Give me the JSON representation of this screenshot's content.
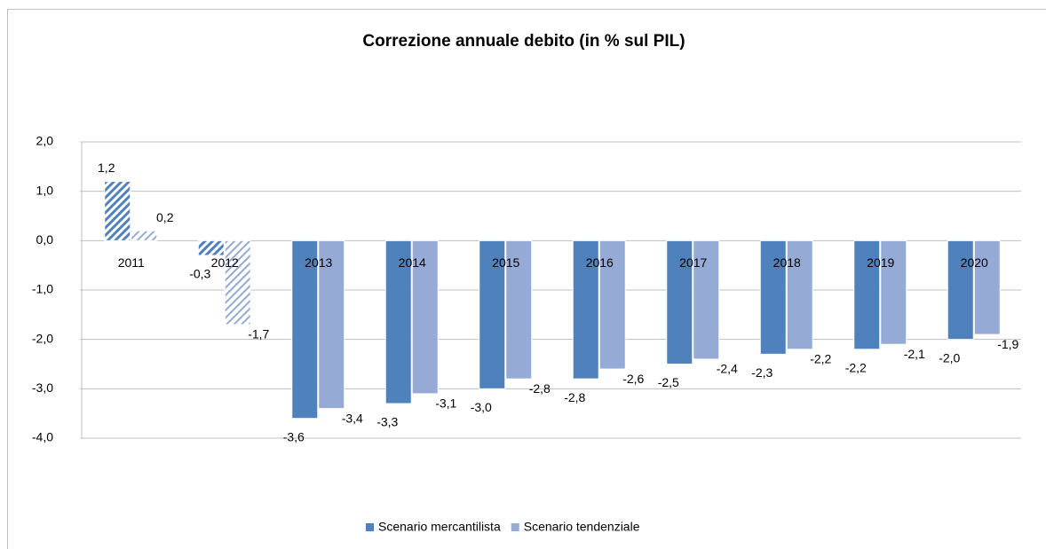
{
  "chart_data": {
    "type": "bar",
    "title": "Correzione annuale debito (in % sul PIL)",
    "categories": [
      "2011",
      "2012",
      "2013",
      "2014",
      "2015",
      "2016",
      "2017",
      "2018",
      "2019",
      "2020"
    ],
    "hatched": [
      true,
      true,
      false,
      false,
      false,
      false,
      false,
      false,
      false,
      false
    ],
    "series": [
      {
        "name": "Scenario mercantilista",
        "color": "#4f81bd",
        "values": [
          1.2,
          -0.3,
          -3.6,
          -3.3,
          -3.0,
          -2.8,
          -2.5,
          -2.3,
          -2.2,
          -2.0
        ],
        "value_labels": [
          "1,2",
          "-0,3",
          "-3,6",
          "-3,3",
          "-3,0",
          "-2,8",
          "-2,5",
          "-2,3",
          "-2,2",
          "-2,0"
        ]
      },
      {
        "name": "Scenario tendenziale",
        "color": "#95abd6",
        "values": [
          0.2,
          -1.7,
          -3.4,
          -3.1,
          -2.8,
          -2.6,
          -2.4,
          -2.2,
          -2.1,
          -1.9
        ],
        "value_labels": [
          "0,2",
          "-1,7",
          "-3,4",
          "-3,1",
          "-2,8",
          "-2,6",
          "-2,4",
          "-2,2",
          "-2,1",
          "-1,9"
        ]
      }
    ],
    "ylim": [
      -4,
      2
    ],
    "yticks": [
      {
        "value": -4,
        "label": "-4,0"
      },
      {
        "value": -3,
        "label": "-3,0"
      },
      {
        "value": -2,
        "label": "-2,0"
      },
      {
        "value": -1,
        "label": "-1,0"
      },
      {
        "value": 0,
        "label": "0,0"
      },
      {
        "value": 1,
        "label": "1,0"
      },
      {
        "value": 2,
        "label": "2,0"
      }
    ],
    "grid": true,
    "legend": "bottom"
  }
}
